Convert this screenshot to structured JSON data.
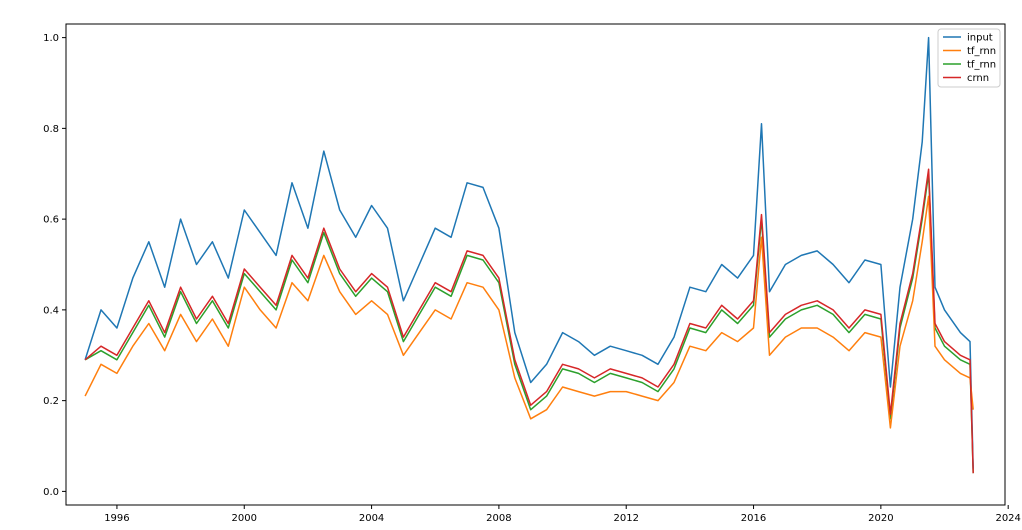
{
  "chart_data": {
    "type": "line",
    "title": "",
    "xlabel": "",
    "ylabel": "",
    "xlim": [
      1994.4,
      2023.9
    ],
    "ylim": [
      -0.03,
      1.03
    ],
    "x_ticks": [
      1996,
      2000,
      2004,
      2008,
      2012,
      2016,
      2020,
      2024
    ],
    "y_ticks": [
      0.0,
      0.2,
      0.4,
      0.6,
      0.8,
      1.0
    ],
    "x_tick_labels": [
      "1996",
      "2000",
      "2004",
      "2008",
      "2012",
      "2016",
      "2020",
      "2024"
    ],
    "y_tick_labels": [
      "0.0",
      "0.2",
      "0.4",
      "0.6",
      "0.8",
      "1.0"
    ],
    "grid": false,
    "legend_position": "top-right",
    "x": [
      1995.0,
      1995.5,
      1996.0,
      1996.5,
      1997.0,
      1997.5,
      1998.0,
      1998.5,
      1999.0,
      1999.5,
      2000.0,
      2000.5,
      2001.0,
      2001.5,
      2002.0,
      2002.5,
      2003.0,
      2003.5,
      2004.0,
      2004.5,
      2005.0,
      2005.5,
      2006.0,
      2006.5,
      2007.0,
      2007.5,
      2008.0,
      2008.5,
      2009.0,
      2009.5,
      2010.0,
      2010.5,
      2011.0,
      2011.5,
      2012.0,
      2012.5,
      2013.0,
      2013.5,
      2014.0,
      2014.5,
      2015.0,
      2015.5,
      2016.0,
      2016.25,
      2016.5,
      2017.0,
      2017.5,
      2018.0,
      2018.5,
      2019.0,
      2019.5,
      2020.0,
      2020.3,
      2020.6,
      2021.0,
      2021.3,
      2021.5,
      2021.7,
      2022.0,
      2022.5,
      2022.8,
      2022.9
    ],
    "series": [
      {
        "name": "input",
        "color": "#1f77b4",
        "values": [
          0.29,
          0.4,
          0.36,
          0.47,
          0.55,
          0.45,
          0.6,
          0.5,
          0.55,
          0.47,
          0.62,
          0.57,
          0.52,
          0.68,
          0.58,
          0.75,
          0.62,
          0.56,
          0.63,
          0.58,
          0.42,
          0.5,
          0.58,
          0.56,
          0.68,
          0.67,
          0.58,
          0.35,
          0.24,
          0.28,
          0.35,
          0.33,
          0.3,
          0.32,
          0.31,
          0.3,
          0.28,
          0.34,
          0.45,
          0.44,
          0.5,
          0.47,
          0.52,
          0.81,
          0.44,
          0.5,
          0.52,
          0.53,
          0.5,
          0.46,
          0.51,
          0.5,
          0.23,
          0.45,
          0.6,
          0.77,
          1.0,
          0.45,
          0.4,
          0.35,
          0.33,
          0.05
        ]
      },
      {
        "name": "tf_rnn",
        "color": "#ff7f0e",
        "values": [
          0.21,
          0.28,
          0.26,
          0.32,
          0.37,
          0.31,
          0.39,
          0.33,
          0.38,
          0.32,
          0.45,
          0.4,
          0.36,
          0.46,
          0.42,
          0.52,
          0.44,
          0.39,
          0.42,
          0.39,
          0.3,
          0.35,
          0.4,
          0.38,
          0.46,
          0.45,
          0.4,
          0.25,
          0.16,
          0.18,
          0.23,
          0.22,
          0.21,
          0.22,
          0.22,
          0.21,
          0.2,
          0.24,
          0.32,
          0.31,
          0.35,
          0.33,
          0.36,
          0.56,
          0.3,
          0.34,
          0.36,
          0.36,
          0.34,
          0.31,
          0.35,
          0.34,
          0.14,
          0.32,
          0.42,
          0.55,
          0.65,
          0.32,
          0.29,
          0.26,
          0.25,
          0.18
        ]
      },
      {
        "name": "tf_rnn",
        "color": "#2ca02c",
        "values": [
          0.29,
          0.31,
          0.29,
          0.35,
          0.41,
          0.34,
          0.44,
          0.37,
          0.42,
          0.36,
          0.48,
          0.44,
          0.4,
          0.51,
          0.46,
          0.57,
          0.48,
          0.43,
          0.47,
          0.44,
          0.33,
          0.39,
          0.45,
          0.43,
          0.52,
          0.51,
          0.46,
          0.28,
          0.18,
          0.21,
          0.27,
          0.26,
          0.24,
          0.26,
          0.25,
          0.24,
          0.22,
          0.27,
          0.36,
          0.35,
          0.4,
          0.37,
          0.41,
          0.6,
          0.34,
          0.38,
          0.4,
          0.41,
          0.39,
          0.35,
          0.39,
          0.38,
          0.16,
          0.36,
          0.47,
          0.6,
          0.7,
          0.36,
          0.32,
          0.29,
          0.28,
          0.04
        ]
      },
      {
        "name": "crnn",
        "color": "#d62728",
        "values": [
          0.29,
          0.32,
          0.3,
          0.36,
          0.42,
          0.35,
          0.45,
          0.38,
          0.43,
          0.37,
          0.49,
          0.45,
          0.41,
          0.52,
          0.47,
          0.58,
          0.49,
          0.44,
          0.48,
          0.45,
          0.34,
          0.4,
          0.46,
          0.44,
          0.53,
          0.52,
          0.47,
          0.29,
          0.19,
          0.22,
          0.28,
          0.27,
          0.25,
          0.27,
          0.26,
          0.25,
          0.23,
          0.28,
          0.37,
          0.36,
          0.41,
          0.38,
          0.42,
          0.61,
          0.35,
          0.39,
          0.41,
          0.42,
          0.4,
          0.36,
          0.4,
          0.39,
          0.17,
          0.37,
          0.48,
          0.61,
          0.71,
          0.37,
          0.33,
          0.3,
          0.29,
          0.04
        ]
      }
    ]
  }
}
